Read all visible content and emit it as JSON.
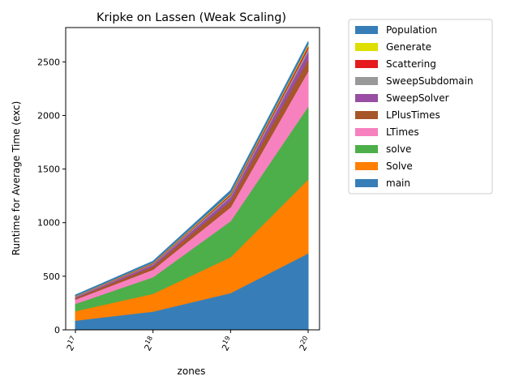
{
  "chart_data": {
    "type": "area",
    "stacked": true,
    "title": "Kripke on Lassen (Weak Scaling)",
    "xlabel": "zones",
    "ylabel": "Runtime for Average Time (exc)",
    "x": [
      17,
      18,
      19,
      20
    ],
    "x_tick_labels": [
      {
        "base": "2",
        "exp": "17"
      },
      {
        "base": "2",
        "exp": "18"
      },
      {
        "base": "2",
        "exp": "19"
      },
      {
        "base": "2",
        "exp": "20"
      }
    ],
    "ylim": [
      0,
      2820
    ],
    "yticks": [
      0,
      500,
      1000,
      1500,
      2000,
      2500
    ],
    "grid": false,
    "legend_position": "outside-right",
    "stack_order": [
      "main",
      "Solve",
      "solve",
      "LTimes",
      "LPlusTimes",
      "SweepSolver",
      "SweepSubdomain",
      "Scattering",
      "Generate",
      "Population"
    ],
    "series": [
      {
        "name": "main",
        "color": "#377eb8",
        "values": [
          88,
          172,
          345,
          715
        ]
      },
      {
        "name": "Solve",
        "color": "#ff7f00",
        "values": [
          88,
          166,
          335,
          690
        ]
      },
      {
        "name": "solve",
        "color": "#4daf4a",
        "values": [
          68,
          155,
          335,
          680
        ]
      },
      {
        "name": "LTimes",
        "color": "#f781bf",
        "values": [
          40,
          70,
          130,
          330
        ]
      },
      {
        "name": "LPlusTimes",
        "color": "#a65628",
        "values": [
          14,
          30,
          60,
          110
        ]
      },
      {
        "name": "SweepSolver",
        "color": "#984ea3",
        "values": [
          8,
          17,
          35,
          70
        ]
      },
      {
        "name": "SweepSubdomain",
        "color": "#999999",
        "values": [
          4,
          8,
          16,
          30
        ]
      },
      {
        "name": "Scattering",
        "color": "#e41a1c",
        "values": [
          3,
          6,
          12,
          25
        ]
      },
      {
        "name": "Generate",
        "color": "#dede00",
        "values": [
          2,
          4,
          8,
          15
        ]
      },
      {
        "name": "Population",
        "color": "#377eb8",
        "values": [
          10,
          12,
          24,
          25
        ]
      }
    ],
    "legend_order": [
      "Population",
      "Generate",
      "Scattering",
      "SweepSubdomain",
      "SweepSolver",
      "LPlusTimes",
      "LTimes",
      "solve",
      "Solve",
      "main"
    ]
  }
}
